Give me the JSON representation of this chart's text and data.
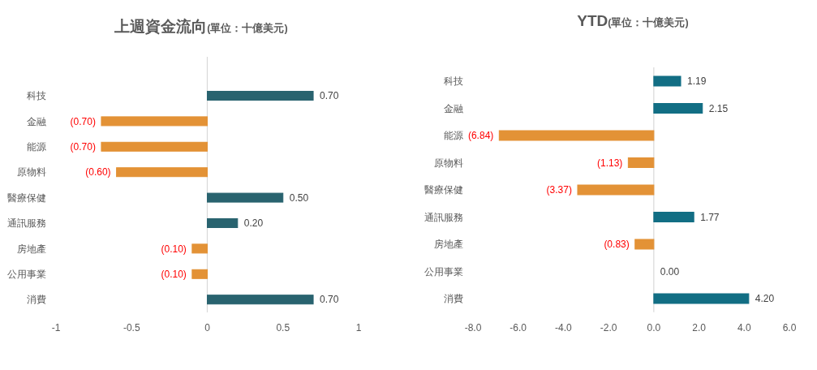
{
  "chart_data": [
    {
      "type": "bar",
      "orientation": "horizontal",
      "title": "上週資金流向",
      "subtitle": "(單位：十億美元)",
      "categories": [
        "科技",
        "金融",
        "能源",
        "原物料",
        "醫療保健",
        "通訊服務",
        "房地產",
        "公用事業",
        "消費"
      ],
      "values": [
        0.7,
        -0.7,
        -0.7,
        -0.6,
        0.5,
        0.2,
        -0.1,
        -0.1,
        0.7
      ],
      "colors": [
        "#29636f",
        "#e39236",
        "#e39236",
        "#e39236",
        "#29636f",
        "#29636f",
        "#e39236",
        "#e39236",
        "#29636f"
      ],
      "value_labels": [
        "0.70",
        "(0.70)",
        "(0.70)",
        "(0.60)",
        "0.50",
        "0.20",
        "(0.10)",
        "(0.10)",
        "0.70"
      ],
      "xlim": [
        -1,
        1
      ],
      "xticks": [
        -1,
        -0.5,
        0,
        0.5,
        1
      ]
    },
    {
      "type": "bar",
      "orientation": "horizontal",
      "title": "YTD",
      "subtitle": "(單位：十億美元)",
      "categories": [
        "科技",
        "金融",
        "能源",
        "原物料",
        "醫療保健",
        "通訊服務",
        "房地產",
        "公用事業",
        "消費"
      ],
      "values": [
        1.19,
        2.15,
        -6.84,
        -1.13,
        -3.37,
        1.77,
        -0.83,
        0.0,
        4.2
      ],
      "colors": [
        "#126e84",
        "#126e84",
        "#e39236",
        "#e39236",
        "#e39236",
        "#126e84",
        "#e39236",
        "#126e84",
        "#126e84"
      ],
      "value_labels": [
        "1.19",
        "2.15",
        "(6.84)",
        "(1.13)",
        "(3.37)",
        "1.77",
        "(0.83)",
        "0.00",
        "4.20"
      ],
      "xlim": [
        -8,
        6
      ],
      "xticks": [
        {
          "value": -8,
          "label": "-8.0"
        },
        {
          "value": -6,
          "label": "-6.0"
        },
        {
          "value": -4,
          "label": "-4.0"
        },
        {
          "value": -2,
          "label": "-2.0"
        },
        {
          "value": 0,
          "label": "0.0"
        },
        {
          "value": 2,
          "label": "2.0"
        },
        {
          "value": 4,
          "label": "4.0"
        },
        {
          "value": 6,
          "label": "6.0"
        }
      ]
    }
  ]
}
